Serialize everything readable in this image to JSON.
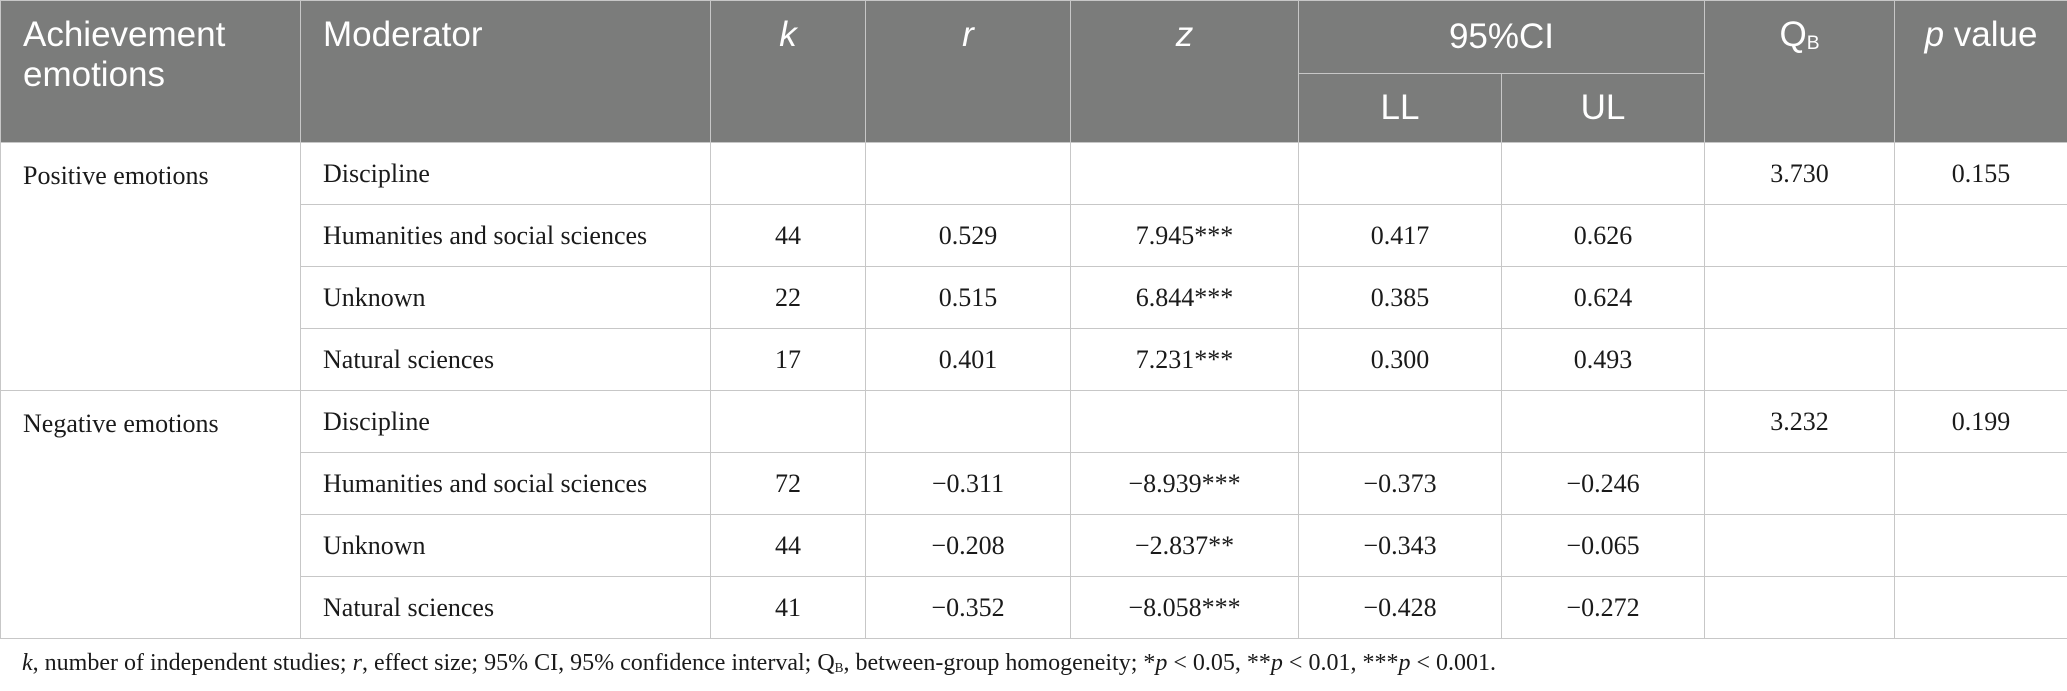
{
  "headers": {
    "achievement": "Achievement emotions",
    "moderator": "Moderator",
    "k": "k",
    "r": "r",
    "z": "z",
    "ci": "95%CI",
    "ll": "LL",
    "ul": "UL",
    "qb_main": "Q",
    "qb_sub": "B",
    "p_italic": "p",
    "p_rest": " value"
  },
  "groups": [
    {
      "name": "Positive emotions",
      "rows": [
        {
          "moderator": "Discipline",
          "k": "",
          "r": "",
          "z": "",
          "ll": "",
          "ul": "",
          "qb": "3.730",
          "p": "0.155"
        },
        {
          "moderator": "Humanities and social sciences",
          "k": "44",
          "r": "0.529",
          "z": "7.945***",
          "ll": "0.417",
          "ul": "0.626",
          "qb": "",
          "p": ""
        },
        {
          "moderator": "Unknown",
          "k": "22",
          "r": "0.515",
          "z": "6.844***",
          "ll": "0.385",
          "ul": "0.624",
          "qb": "",
          "p": ""
        },
        {
          "moderator": "Natural sciences",
          "k": "17",
          "r": "0.401",
          "z": "7.231***",
          "ll": "0.300",
          "ul": "0.493",
          "qb": "",
          "p": ""
        }
      ]
    },
    {
      "name": "Negative emotions",
      "rows": [
        {
          "moderator": "Discipline",
          "k": "",
          "r": "",
          "z": "",
          "ll": "",
          "ul": "",
          "qb": "3.232",
          "p": "0.199"
        },
        {
          "moderator": "Humanities and social sciences",
          "k": "72",
          "r": "−0.311",
          "z": "−8.939***",
          "ll": "−0.373",
          "ul": "−0.246",
          "qb": "",
          "p": ""
        },
        {
          "moderator": "Unknown",
          "k": "44",
          "r": "−0.208",
          "z": "−2.837**",
          "ll": "−0.343",
          "ul": "−0.065",
          "qb": "",
          "p": ""
        },
        {
          "moderator": "Natural sciences",
          "k": "41",
          "r": "−0.352",
          "z": "−8.058***",
          "ll": "−0.428",
          "ul": "−0.272",
          "qb": "",
          "p": ""
        }
      ]
    }
  ],
  "footnote": {
    "k": "k",
    "t1": ", number of independent studies; ",
    "r": "r",
    "t2": ", effect size; 95% CI, 95% confidence interval; Q",
    "qb_sub": "B",
    "t3": ", between-group homogeneity; *",
    "p1": "p",
    "t4": " < 0.05, **",
    "p2": "p",
    "t5": " < 0.01, ***",
    "p3": "p",
    "t6": " < 0.001."
  }
}
